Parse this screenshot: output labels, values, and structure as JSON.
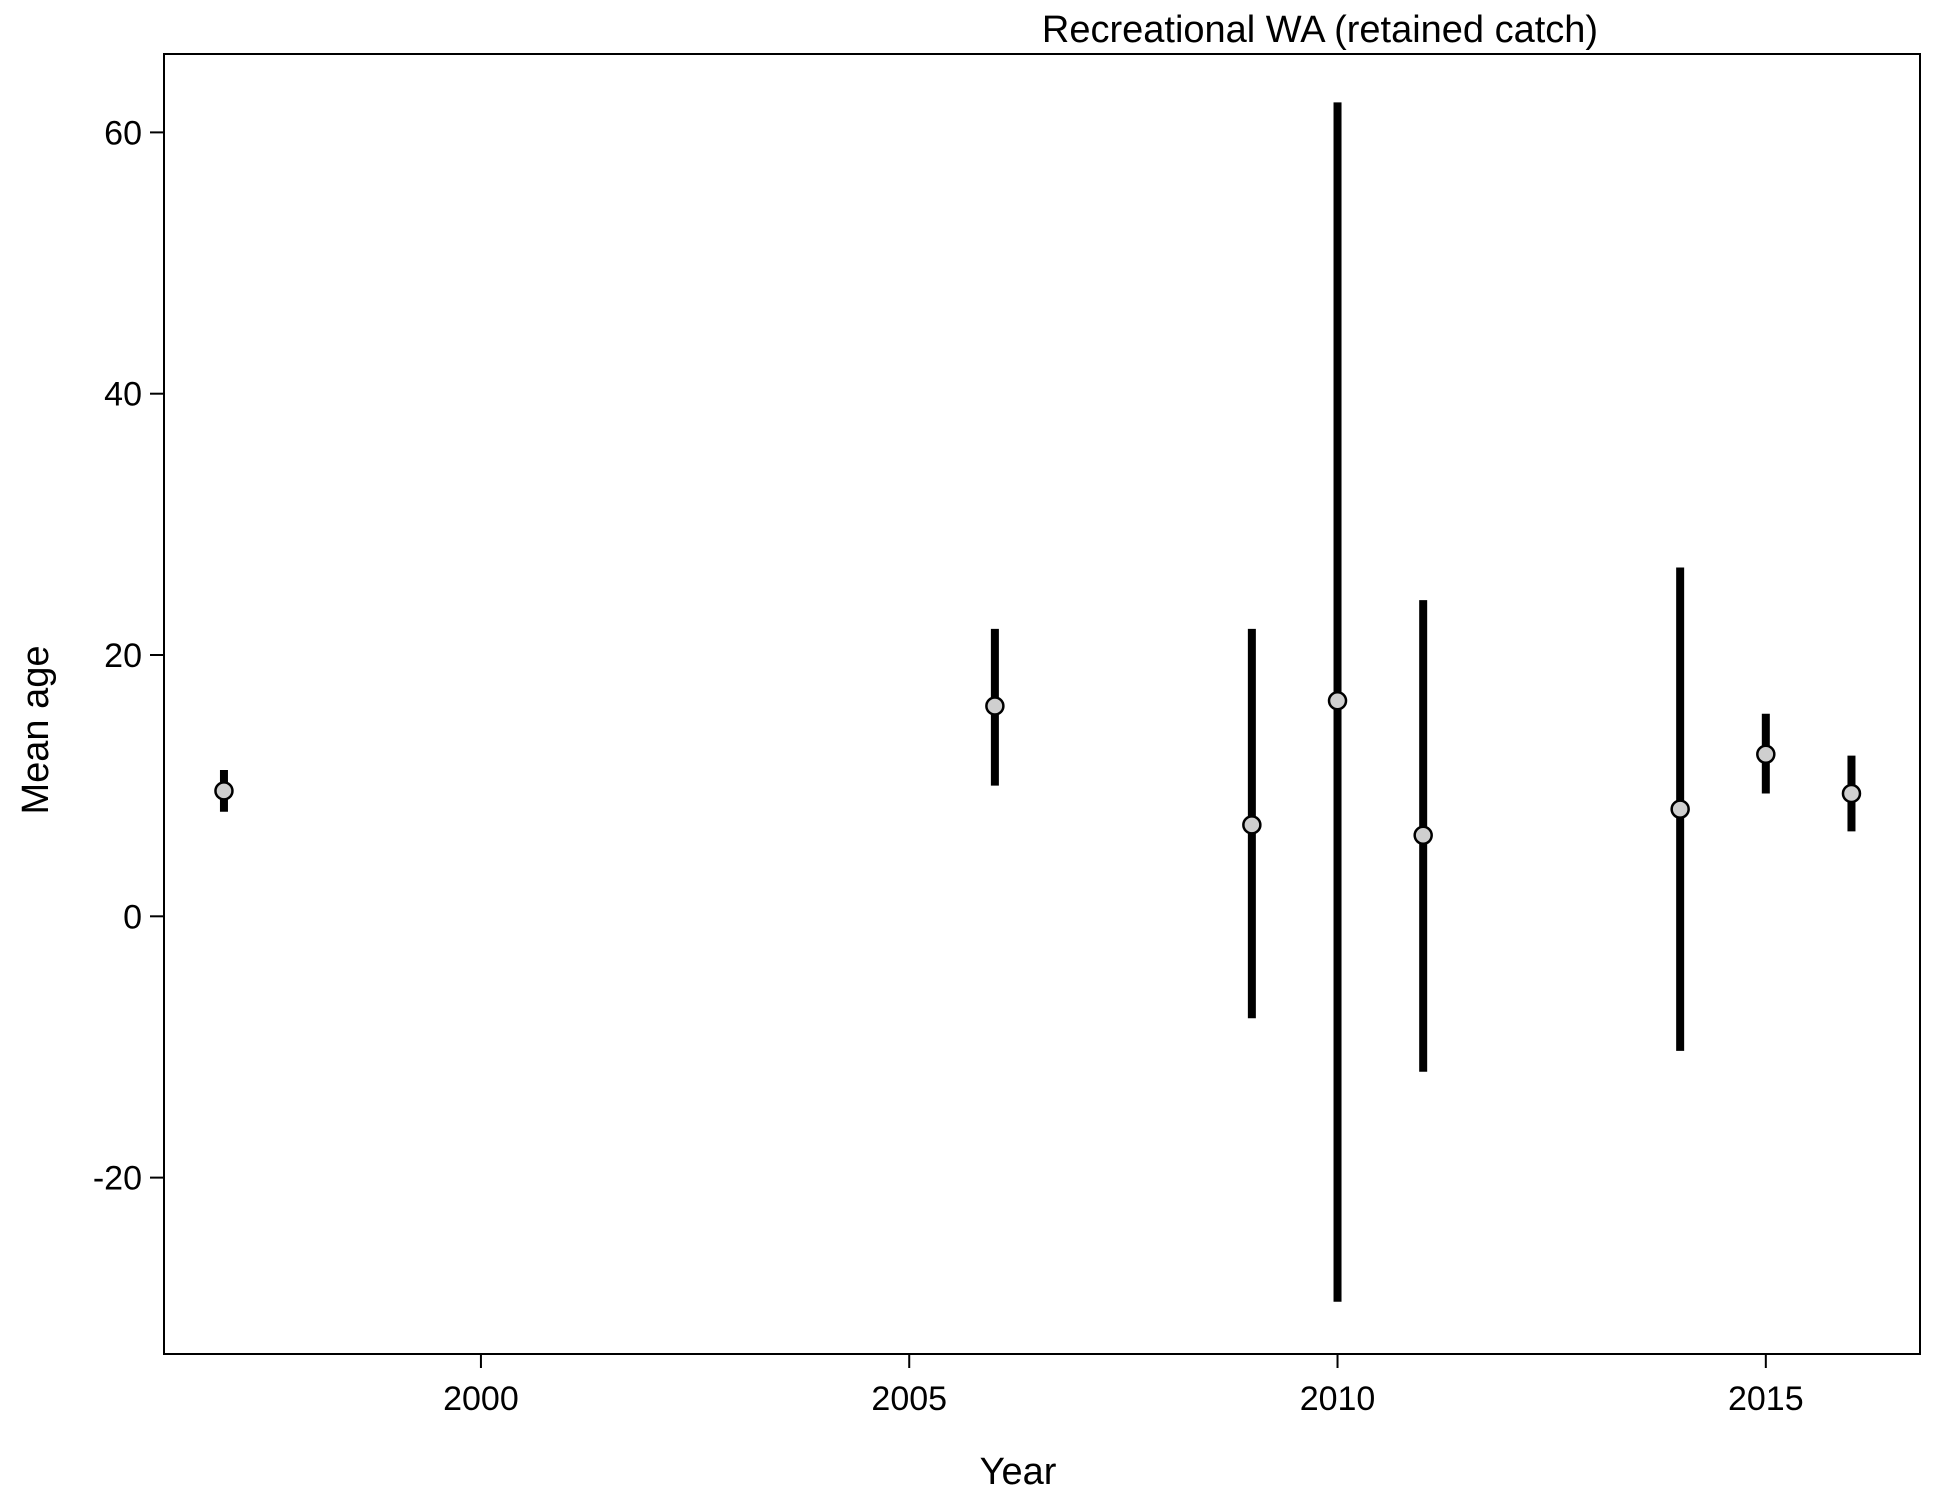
{
  "chart_data": {
    "type": "scatter",
    "title": "Recreational WA (retained catch)",
    "xlabel": "Year",
    "ylabel": "Mean age",
    "xlim": [
      1996.3,
      2016.8
    ],
    "ylim": [
      -33.5,
      66.0
    ],
    "x_ticks": [
      2000,
      2005,
      2010,
      2015
    ],
    "y_ticks": [
      -20,
      0,
      20,
      40,
      60
    ],
    "grid": false,
    "legend": "none",
    "points": [
      {
        "x": 1997,
        "y": 9.6,
        "low": 8.0,
        "high": 11.2
      },
      {
        "x": 2006,
        "y": 16.1,
        "low": 10.0,
        "high": 22.0
      },
      {
        "x": 2009,
        "y": 7.0,
        "low": -7.8,
        "high": 22.0
      },
      {
        "x": 2010,
        "y": 16.5,
        "low": -29.5,
        "high": 62.3
      },
      {
        "x": 2011,
        "y": 6.2,
        "low": -11.9,
        "high": 24.2
      },
      {
        "x": 2014,
        "y": 8.2,
        "low": -10.3,
        "high": 26.7
      },
      {
        "x": 2015,
        "y": 12.4,
        "low": 9.4,
        "high": 15.5
      },
      {
        "x": 2016,
        "y": 9.4,
        "low": 6.5,
        "high": 12.3
      }
    ],
    "colors": {
      "bar": "#000000",
      "point_fill": "#cfcfcf",
      "point_stroke": "#000000"
    }
  }
}
